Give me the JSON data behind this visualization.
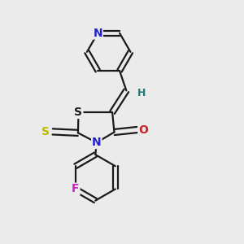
{
  "bg_color": "#ebebeb",
  "line_color": "#1a1a1a",
  "bond_width": 1.6,
  "atom_colors": {
    "N": "#2222cc",
    "O": "#cc2222",
    "S_thione": "#bbbb00",
    "S_ring": "#1a1a1a",
    "F": "#cc22cc",
    "H": "#227777",
    "C": "#1a1a1a"
  },
  "font_size": 10,
  "fig_size": [
    3.0,
    3.0
  ],
  "dpi": 100
}
